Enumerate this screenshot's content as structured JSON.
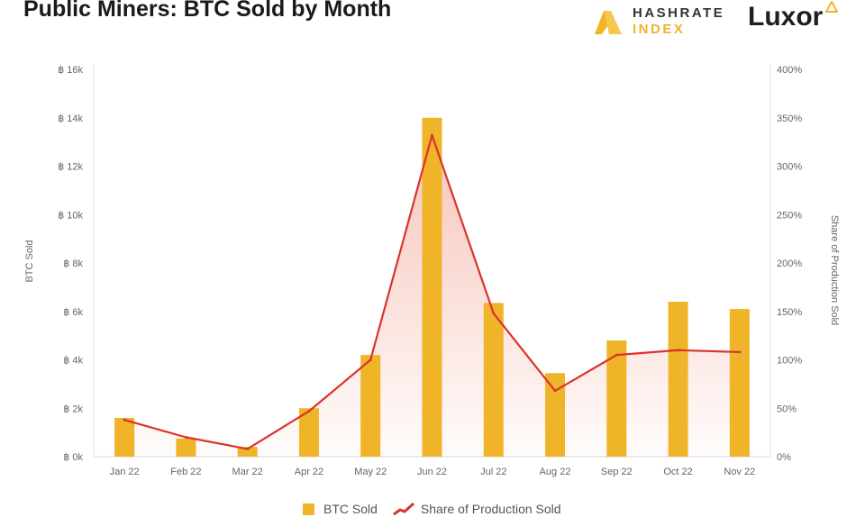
{
  "header": {
    "title": "Public Miners: BTC Sold by Month",
    "logo_hashrate_line1": "HASHRATE",
    "logo_hashrate_line2": "INDEX",
    "logo_luxor": "Luxor"
  },
  "colors": {
    "bar": "#f0b429",
    "line": "#d9342b",
    "area": "#e8583a"
  },
  "chart_data": {
    "type": "bar",
    "categories": [
      "Jan 22",
      "Feb 22",
      "Mar 22",
      "Apr 22",
      "May 22",
      "Jun 22",
      "Jul 22",
      "Aug 22",
      "Sep 22",
      "Oct 22",
      "Nov 22"
    ],
    "series": [
      {
        "name": "BTC Sold",
        "type": "bar",
        "axis": "left",
        "values": [
          1600,
          750,
          400,
          2000,
          4200,
          14000,
          6350,
          3450,
          4800,
          6400,
          6100
        ]
      },
      {
        "name": "Share of Production Sold",
        "type": "line",
        "axis": "right",
        "values": [
          38,
          20,
          8,
          47,
          100,
          332,
          148,
          68,
          105,
          110,
          108
        ]
      }
    ],
    "ylabel": "BTC Sold",
    "y2label": "Share of Production Sold",
    "ylim": [
      0,
      16000
    ],
    "y2lim": [
      0,
      400
    ],
    "y_ticks": [
      "฿ 0k",
      "฿ 2k",
      "฿ 4k",
      "฿ 6k",
      "฿ 8k",
      "฿ 10k",
      "฿ 12k",
      "฿ 14k",
      "฿ 16k"
    ],
    "y2_ticks": [
      "0%",
      "50%",
      "100%",
      "150%",
      "200%",
      "250%",
      "300%",
      "350%",
      "400%"
    ],
    "grid": false,
    "legend_position": "bottom"
  },
  "legend": {
    "bar_label": "BTC Sold",
    "line_label": "Share of Production Sold"
  }
}
